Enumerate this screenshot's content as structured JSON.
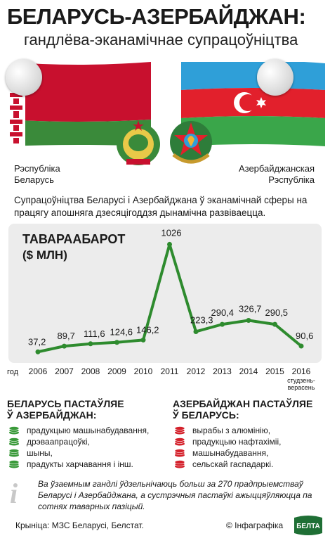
{
  "header": {
    "title": "БЕЛАРУСЬ-АЗЕРБАЙДЖАН:",
    "subtitle": "гандлёва-эканамічнае супрацоўніцтва"
  },
  "countries": {
    "belarus": "Рэспубліка\nБеларусь",
    "azerbaijan": "Азербайджанская\nРэспубліка"
  },
  "colors": {
    "line": "#2e8b2e",
    "belarus_red": "#c8102e",
    "belarus_green": "#3a8a3a",
    "az_blue": "#2f9fd8",
    "az_red": "#e2202c",
    "az_green": "#3aa64a",
    "coin_green": "#3a9a3a",
    "coin_red": "#d4212b"
  },
  "intro": "Супрацоўніцтва Беларусі і Азербайджана ў эканамічнай сферы на працягу апошняга дзесяцігоддзя дынамічна развіваецца.",
  "chart_data": {
    "type": "line",
    "title": "ТАВАРААБАРОТ",
    "ylabel": "($ МЛН)",
    "xlabel": "год",
    "categories": [
      "2006",
      "2007",
      "2008",
      "2009",
      "2010",
      "2011",
      "2012",
      "2013",
      "2014",
      "2015",
      "2016"
    ],
    "category_note": "студзень-верасень",
    "values": [
      37.2,
      89.7,
      111.6,
      124.6,
      146.2,
      1026,
      223.3,
      290.4,
      326.7,
      290.5,
      90.6
    ],
    "value_labels": [
      "37,2",
      "89,7",
      "111,6",
      "124,6",
      "146,2",
      "1026",
      "223,3",
      "290,4",
      "326,7",
      "290,5",
      "90,6"
    ],
    "ylim": [
      0,
      1100
    ],
    "grid": false
  },
  "exports_by": {
    "title_line1": "БЕЛАРУСЬ ПАСТАЎЛЯЕ",
    "title_line2": "Ў АЗЕРБАЙДЖАН:",
    "items": [
      "прадукцыю машынабудавання,",
      "дрэваапрацоўкі,",
      "шыны,",
      "прадукты харчавання і інш."
    ]
  },
  "exports_az": {
    "title_line1": "АЗЕРБАЙДЖАН ПАСТАЎЛЯЕ",
    "title_line2": "Ў БЕЛАРУСЬ:",
    "items": [
      "вырабы з алюмінію,",
      "прадукцыю нафтахіміі,",
      "машынабудавання,",
      "сельскай гаспадаркі."
    ]
  },
  "info": "Ва ўзаемным гандлі ўдзельнічаюць больш за 270 прадпрыемстваў Беларусі і Азербайджана, а сустрэчныя пастаўкі ажыццяўляюцца па сотнях таварных пазіцый.",
  "footer": {
    "source": "Крыніца: МЗС Беларусі, Белстат.",
    "copyright": "© Інфаграфіка",
    "logo_text": "БЕЛТА"
  }
}
